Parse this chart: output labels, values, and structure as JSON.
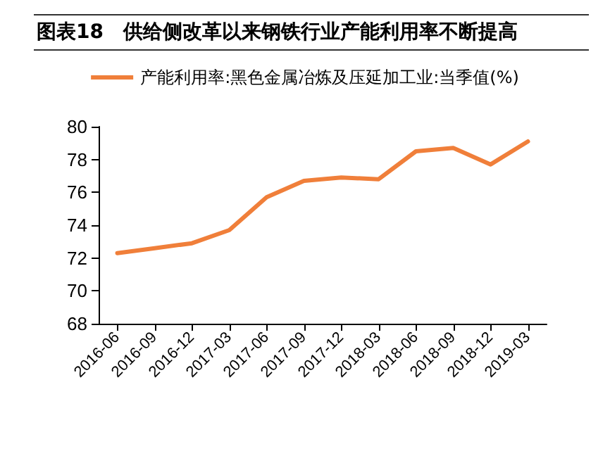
{
  "chart_data": {
    "type": "line",
    "title": "图表18　供给侧改革以来钢铁行业产能利用率不断提高",
    "categories": [
      "2016-06",
      "2016-09",
      "2016-12",
      "2017-03",
      "2017-06",
      "2017-09",
      "2017-12",
      "2018-03",
      "2018-06",
      "2018-09",
      "2018-12",
      "2019-03"
    ],
    "series": [
      {
        "name": "产能利用率:黑色金属冶炼及压延加工业:当季值(%)",
        "color": "#f07f3a",
        "values": [
          72.3,
          72.6,
          72.9,
          73.7,
          75.7,
          76.7,
          76.9,
          76.8,
          78.5,
          78.7,
          77.7,
          79.1
        ]
      }
    ],
    "ylim": [
      68,
      80
    ],
    "yticks": [
      68,
      70,
      72,
      74,
      76,
      78,
      80
    ],
    "grid": false,
    "legend": "top",
    "marker": "none",
    "line_style": "solid"
  }
}
